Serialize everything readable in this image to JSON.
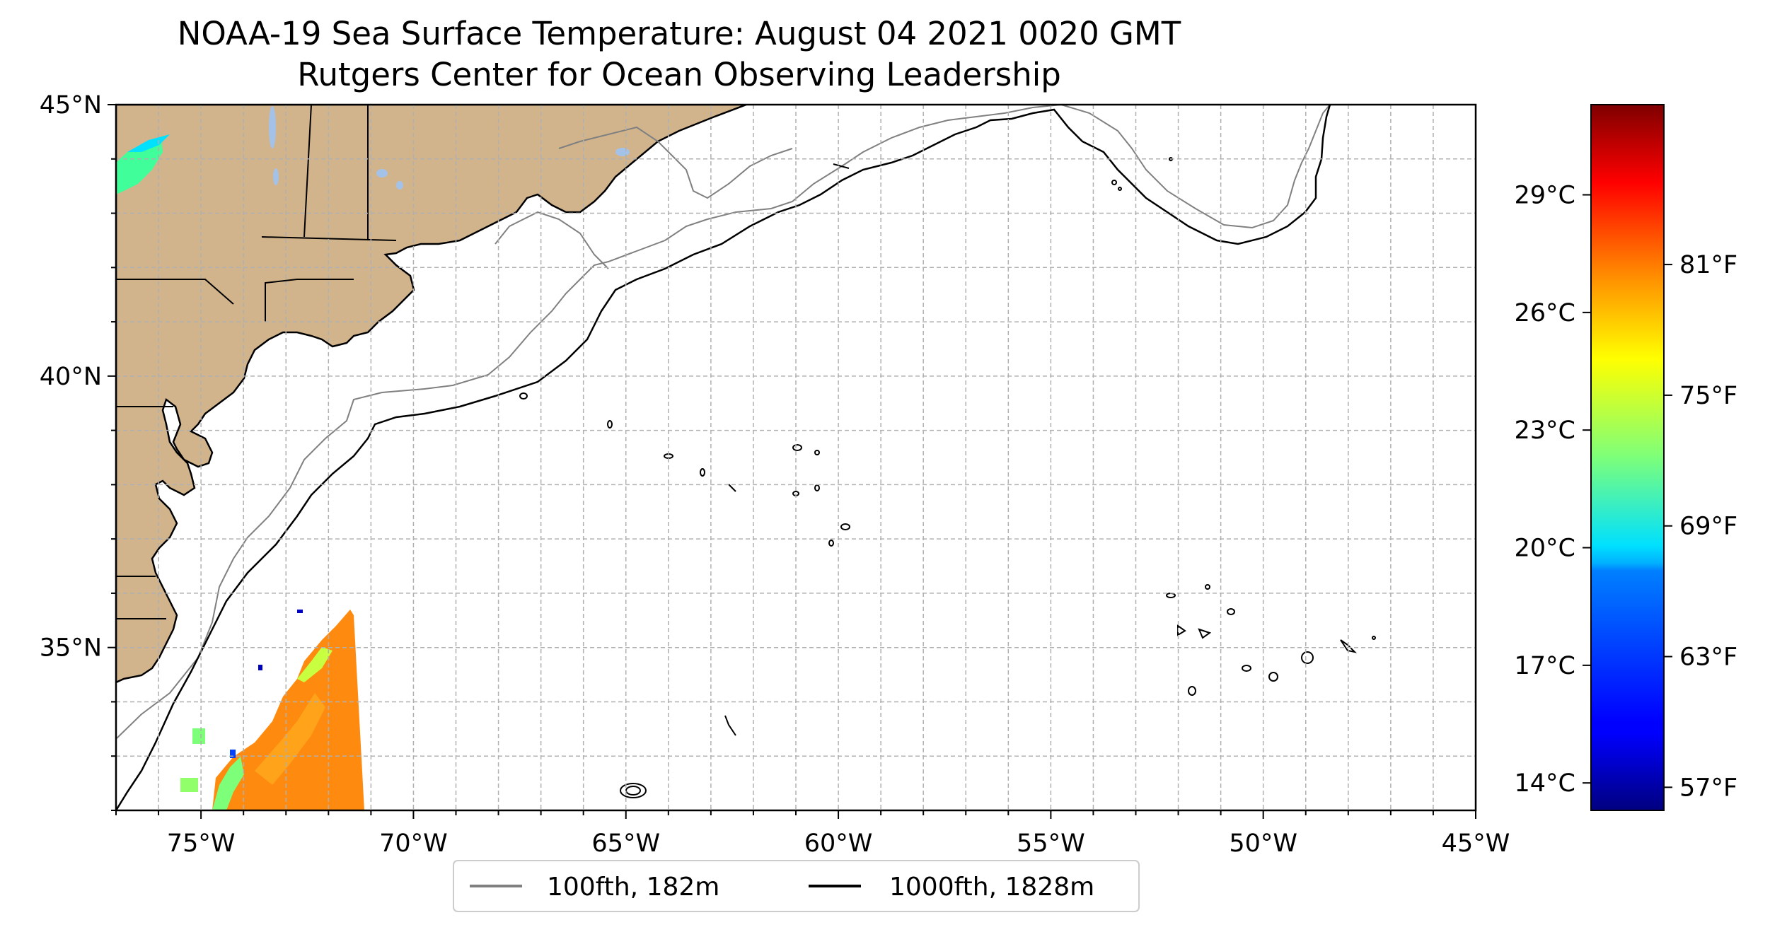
{
  "title": {
    "line1": "NOAA-19 Sea Surface Temperature: August 04 2021 0020 GMT",
    "line2": "Rutgers Center for Ocean Observing Leadership"
  },
  "map": {
    "lon_range": [
      -77,
      -45
    ],
    "lat_range": [
      32,
      45
    ],
    "gridlines": true,
    "colors": {
      "land": "#d2b48c",
      "lakes": "#a4c2e8",
      "frame": "#000000",
      "grid": "#b0b0b0"
    },
    "x_ticks": [
      {
        "lon": -75,
        "label": "75°W"
      },
      {
        "lon": -70,
        "label": "70°W"
      },
      {
        "lon": -65,
        "label": "65°W"
      },
      {
        "lon": -60,
        "label": "60°W"
      },
      {
        "lon": -55,
        "label": "55°W"
      },
      {
        "lon": -50,
        "label": "50°W"
      },
      {
        "lon": -45,
        "label": "45°W"
      }
    ],
    "y_ticks": [
      {
        "lat": 45,
        "label": "45°N"
      },
      {
        "lat": 40,
        "label": "40°N"
      },
      {
        "lat": 35,
        "label": "35°N"
      }
    ]
  },
  "colorbar": {
    "cmap": "jet",
    "range_c": [
      13.3,
      31.3
    ],
    "celsius_ticks": [
      {
        "value": 14,
        "label": "14°C"
      },
      {
        "value": 17,
        "label": "17°C"
      },
      {
        "value": 20,
        "label": "20°C"
      },
      {
        "value": 23,
        "label": "23°C"
      },
      {
        "value": 26,
        "label": "26°C"
      },
      {
        "value": 29,
        "label": "29°C"
      }
    ],
    "fahrenheit_ticks": [
      {
        "value": 57,
        "label": "57°F"
      },
      {
        "value": 63,
        "label": "63°F"
      },
      {
        "value": 69,
        "label": "69°F"
      },
      {
        "value": 75,
        "label": "75°F"
      },
      {
        "value": 81,
        "label": "81°F"
      }
    ]
  },
  "legend": {
    "placement": "bottom-center",
    "items": [
      {
        "label": "100fth, 182m",
        "color": "#808080"
      },
      {
        "label": "1000fth, 1828m",
        "color": "#000000"
      }
    ]
  }
}
